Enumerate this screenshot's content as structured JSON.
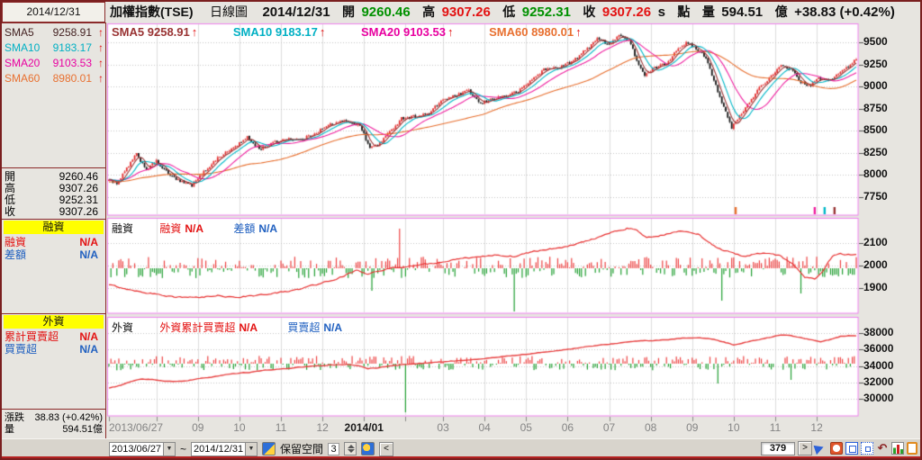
{
  "topbar": {
    "date": "2014/12/31",
    "symbol": "加權指數(TSE)",
    "period": "日線圖",
    "open_label": "開",
    "open": "9260.46",
    "high_label": "高",
    "high": "9307.26",
    "low_label": "低",
    "low": "9252.31",
    "close_label": "收",
    "close": "9307.26",
    "settle_label": "s",
    "point_label": "點",
    "volume_label": "量",
    "volume": "594.51",
    "volume_unit": "億",
    "change": "+38.83 (+0.42%)"
  },
  "sidebar": {
    "sma": [
      {
        "label": "SMA5",
        "value": "9258.91",
        "arrow": "↑"
      },
      {
        "label": "SMA10",
        "value": "9183.17",
        "arrow": "↑"
      },
      {
        "label": "SMA20",
        "value": "9103.53",
        "arrow": "↑"
      },
      {
        "label": "SMA60",
        "value": "8980.01",
        "arrow": "↑"
      }
    ],
    "ohlc": [
      {
        "label": "開",
        "value": "9260.46"
      },
      {
        "label": "高",
        "value": "9307.26"
      },
      {
        "label": "低",
        "value": "9252.31"
      },
      {
        "label": "收",
        "value": "9307.26"
      }
    ],
    "margin": {
      "header": "融資",
      "rows": [
        {
          "label": "融資",
          "value": "N/A"
        },
        {
          "label": "差額",
          "value": "N/A"
        }
      ]
    },
    "foreign": {
      "header": "外資",
      "rows": [
        {
          "label": "累計買賣超",
          "value": "N/A"
        },
        {
          "label": "買賣超",
          "value": "N/A"
        }
      ]
    },
    "bottom": [
      {
        "label": "漲跌",
        "value": "38.83 (+0.42%)"
      },
      {
        "label": "量",
        "value": "594.51億"
      }
    ]
  },
  "legends": {
    "price_arrow": "↑",
    "margin": {
      "title": "融資",
      "items": [
        {
          "label": "融資",
          "value": "N/A"
        },
        {
          "label": "差額",
          "value": "N/A"
        }
      ]
    },
    "foreign": {
      "title": "外資",
      "items": [
        {
          "label": "外資累計買賣超",
          "value": "N/A"
        },
        {
          "label": "買賣超",
          "value": "N/A"
        }
      ]
    }
  },
  "toolbar": {
    "from": "2013/06/27",
    "tilde": "~",
    "to": "2014/12/31",
    "dropdown_glyph": "▼",
    "keep_label": "保留空間",
    "keep_value": "3",
    "left_arrow": "<",
    "count": "379",
    "right_arrow": ">",
    "undo_glyph": "↶"
  },
  "chart_data": {
    "type": "candlestick",
    "title": "加權指數(TSE) 日線圖 2014/12/31",
    "days": 379,
    "months": [
      {
        "d": 0,
        "label": "2013/06/27"
      },
      {
        "d": 24,
        "label": ""
      },
      {
        "d": 45,
        "label": "09"
      },
      {
        "d": 66,
        "label": "10"
      },
      {
        "d": 87,
        "label": "11"
      },
      {
        "d": 108,
        "label": "12"
      },
      {
        "d": 129,
        "label": "2014/01"
      },
      {
        "d": 150,
        "label": ""
      },
      {
        "d": 169,
        "label": "03"
      },
      {
        "d": 190,
        "label": "04"
      },
      {
        "d": 211,
        "label": "05"
      },
      {
        "d": 232,
        "label": "06"
      },
      {
        "d": 253,
        "label": "07"
      },
      {
        "d": 274,
        "label": "08"
      },
      {
        "d": 295,
        "label": "09"
      },
      {
        "d": 316,
        "label": "10"
      },
      {
        "d": 337,
        "label": "11"
      },
      {
        "d": 358,
        "label": "12"
      }
    ],
    "price_panel": {
      "yticks": [
        9500,
        9250,
        9000,
        8750,
        8500,
        8250,
        8000,
        7750
      ],
      "up_color": "#e43333",
      "down_color": "#1a1a1a",
      "last_close": 9307.26,
      "sma": [
        {
          "period": 5,
          "color": "#993333",
          "value": 9258.91
        },
        {
          "period": 10,
          "color": "#00b8c8",
          "value": 9183.17
        },
        {
          "period": 20,
          "color": "#f020a0",
          "value": 9103.53
        },
        {
          "period": 60,
          "color": "#e87030",
          "value": 8980.01
        }
      ],
      "close_anchors": [
        [
          0,
          7950
        ],
        [
          4,
          7885
        ],
        [
          9,
          8070
        ],
        [
          14,
          8230
        ],
        [
          19,
          8060
        ],
        [
          24,
          8150
        ],
        [
          30,
          8010
        ],
        [
          36,
          7920
        ],
        [
          42,
          7880
        ],
        [
          48,
          8030
        ],
        [
          55,
          8190
        ],
        [
          62,
          8290
        ],
        [
          70,
          8420
        ],
        [
          76,
          8290
        ],
        [
          83,
          8360
        ],
        [
          90,
          8410
        ],
        [
          97,
          8390
        ],
        [
          105,
          8480
        ],
        [
          112,
          8570
        ],
        [
          120,
          8610
        ],
        [
          127,
          8560
        ],
        [
          132,
          8300
        ],
        [
          136,
          8340
        ],
        [
          142,
          8480
        ],
        [
          148,
          8640
        ],
        [
          155,
          8660
        ],
        [
          162,
          8690
        ],
        [
          168,
          8840
        ],
        [
          175,
          8890
        ],
        [
          182,
          8950
        ],
        [
          188,
          8800
        ],
        [
          194,
          8860
        ],
        [
          200,
          8890
        ],
        [
          207,
          8940
        ],
        [
          214,
          9080
        ],
        [
          220,
          9190
        ],
        [
          228,
          9220
        ],
        [
          235,
          9290
        ],
        [
          242,
          9430
        ],
        [
          247,
          9550
        ],
        [
          252,
          9470
        ],
        [
          258,
          9580
        ],
        [
          263,
          9520
        ],
        [
          268,
          9250
        ],
        [
          271,
          9120
        ],
        [
          276,
          9210
        ],
        [
          282,
          9260
        ],
        [
          288,
          9440
        ],
        [
          292,
          9490
        ],
        [
          297,
          9430
        ],
        [
          302,
          9330
        ],
        [
          307,
          9010
        ],
        [
          312,
          8700
        ],
        [
          315,
          8530
        ],
        [
          319,
          8660
        ],
        [
          324,
          8820
        ],
        [
          329,
          8990
        ],
        [
          334,
          9090
        ],
        [
          340,
          9230
        ],
        [
          345,
          9200
        ],
        [
          350,
          9050
        ],
        [
          354,
          9000
        ],
        [
          359,
          9090
        ],
        [
          364,
          9060
        ],
        [
          368,
          9130
        ],
        [
          372,
          9190
        ],
        [
          375,
          9240
        ],
        [
          378,
          9307
        ]
      ],
      "markers": [
        {
          "d": 317,
          "color": "#e87030"
        },
        {
          "d": 357,
          "color": "#f020a0"
        },
        {
          "d": 362,
          "color": "#00b8c8"
        },
        {
          "d": 367,
          "color": "#993333"
        }
      ]
    },
    "margin_panel": {
      "yticks": [
        2100,
        2000,
        1900
      ],
      "line_color": "#e83030",
      "bar_up_color": "#ee4444",
      "bar_down_color": "#22a033",
      "line_anchors": [
        [
          0,
          1915
        ],
        [
          8,
          1898
        ],
        [
          16,
          1885
        ],
        [
          25,
          1872
        ],
        [
          35,
          1860
        ],
        [
          45,
          1857
        ],
        [
          55,
          1866
        ],
        [
          65,
          1860
        ],
        [
          75,
          1868
        ],
        [
          85,
          1878
        ],
        [
          95,
          1892
        ],
        [
          103,
          1912
        ],
        [
          110,
          1928
        ],
        [
          118,
          1952
        ],
        [
          125,
          1978
        ],
        [
          131,
          1962
        ],
        [
          136,
          1972
        ],
        [
          142,
          1988
        ],
        [
          150,
          1996
        ],
        [
          158,
          2002
        ],
        [
          166,
          2012
        ],
        [
          175,
          2025
        ],
        [
          185,
          2038
        ],
        [
          195,
          2048
        ],
        [
          205,
          2042
        ],
        [
          215,
          2062
        ],
        [
          225,
          2075
        ],
        [
          235,
          2092
        ],
        [
          245,
          2118
        ],
        [
          255,
          2148
        ],
        [
          262,
          2166
        ],
        [
          267,
          2158
        ],
        [
          272,
          2122
        ],
        [
          278,
          2132
        ],
        [
          285,
          2148
        ],
        [
          292,
          2152
        ],
        [
          298,
          2140
        ],
        [
          304,
          2098
        ],
        [
          310,
          2072
        ],
        [
          316,
          2052
        ],
        [
          322,
          2042
        ],
        [
          328,
          2052
        ],
        [
          334,
          2055
        ],
        [
          340,
          2042
        ],
        [
          346,
          2005
        ],
        [
          352,
          1950
        ],
        [
          357,
          1942
        ],
        [
          362,
          1988
        ],
        [
          366,
          2042
        ],
        [
          370,
          2052
        ],
        [
          374,
          2048
        ],
        [
          378,
          2050
        ]
      ],
      "bar_spikes": [
        [
          133,
          -25
        ],
        [
          147,
          44
        ],
        [
          205,
          -48
        ],
        [
          310,
          -36
        ],
        [
          350,
          -28
        ]
      ]
    },
    "foreign_panel": {
      "yticks": [
        38000,
        36000,
        34000,
        32000,
        30000
      ],
      "line_color": "#e84040",
      "bar_up_color": "#ee4444",
      "bar_down_color": "#22a033",
      "line_anchors": [
        [
          0,
          31300
        ],
        [
          6,
          31650
        ],
        [
          12,
          32150
        ],
        [
          17,
          32420
        ],
        [
          22,
          32350
        ],
        [
          28,
          32120
        ],
        [
          34,
          32080
        ],
        [
          40,
          32220
        ],
        [
          48,
          32520
        ],
        [
          56,
          32820
        ],
        [
          64,
          33050
        ],
        [
          72,
          33250
        ],
        [
          80,
          33480
        ],
        [
          88,
          33650
        ],
        [
          96,
          33820
        ],
        [
          104,
          33980
        ],
        [
          112,
          34120
        ],
        [
          120,
          34180
        ],
        [
          127,
          33980
        ],
        [
          131,
          33680
        ],
        [
          136,
          33780
        ],
        [
          142,
          34020
        ],
        [
          150,
          34180
        ],
        [
          158,
          34320
        ],
        [
          166,
          34450
        ],
        [
          175,
          34620
        ],
        [
          185,
          34780
        ],
        [
          195,
          35020
        ],
        [
          205,
          35280
        ],
        [
          215,
          35520
        ],
        [
          225,
          35820
        ],
        [
          235,
          36120
        ],
        [
          243,
          36380
        ],
        [
          251,
          36580
        ],
        [
          259,
          36820
        ],
        [
          267,
          37020
        ],
        [
          275,
          37080
        ],
        [
          283,
          37180
        ],
        [
          291,
          37380
        ],
        [
          298,
          37460
        ],
        [
          304,
          37280
        ],
        [
          310,
          36980
        ],
        [
          316,
          36580
        ],
        [
          322,
          36880
        ],
        [
          328,
          37180
        ],
        [
          334,
          37480
        ],
        [
          340,
          37780
        ],
        [
          345,
          37700
        ],
        [
          350,
          37420
        ],
        [
          355,
          37180
        ],
        [
          360,
          36980
        ],
        [
          365,
          37220
        ],
        [
          370,
          37580
        ],
        [
          374,
          37680
        ],
        [
          378,
          37600
        ]
      ],
      "bar_spikes": [
        [
          150,
          -54
        ],
        [
          308,
          -22
        ],
        [
          345,
          -18
        ]
      ]
    }
  }
}
